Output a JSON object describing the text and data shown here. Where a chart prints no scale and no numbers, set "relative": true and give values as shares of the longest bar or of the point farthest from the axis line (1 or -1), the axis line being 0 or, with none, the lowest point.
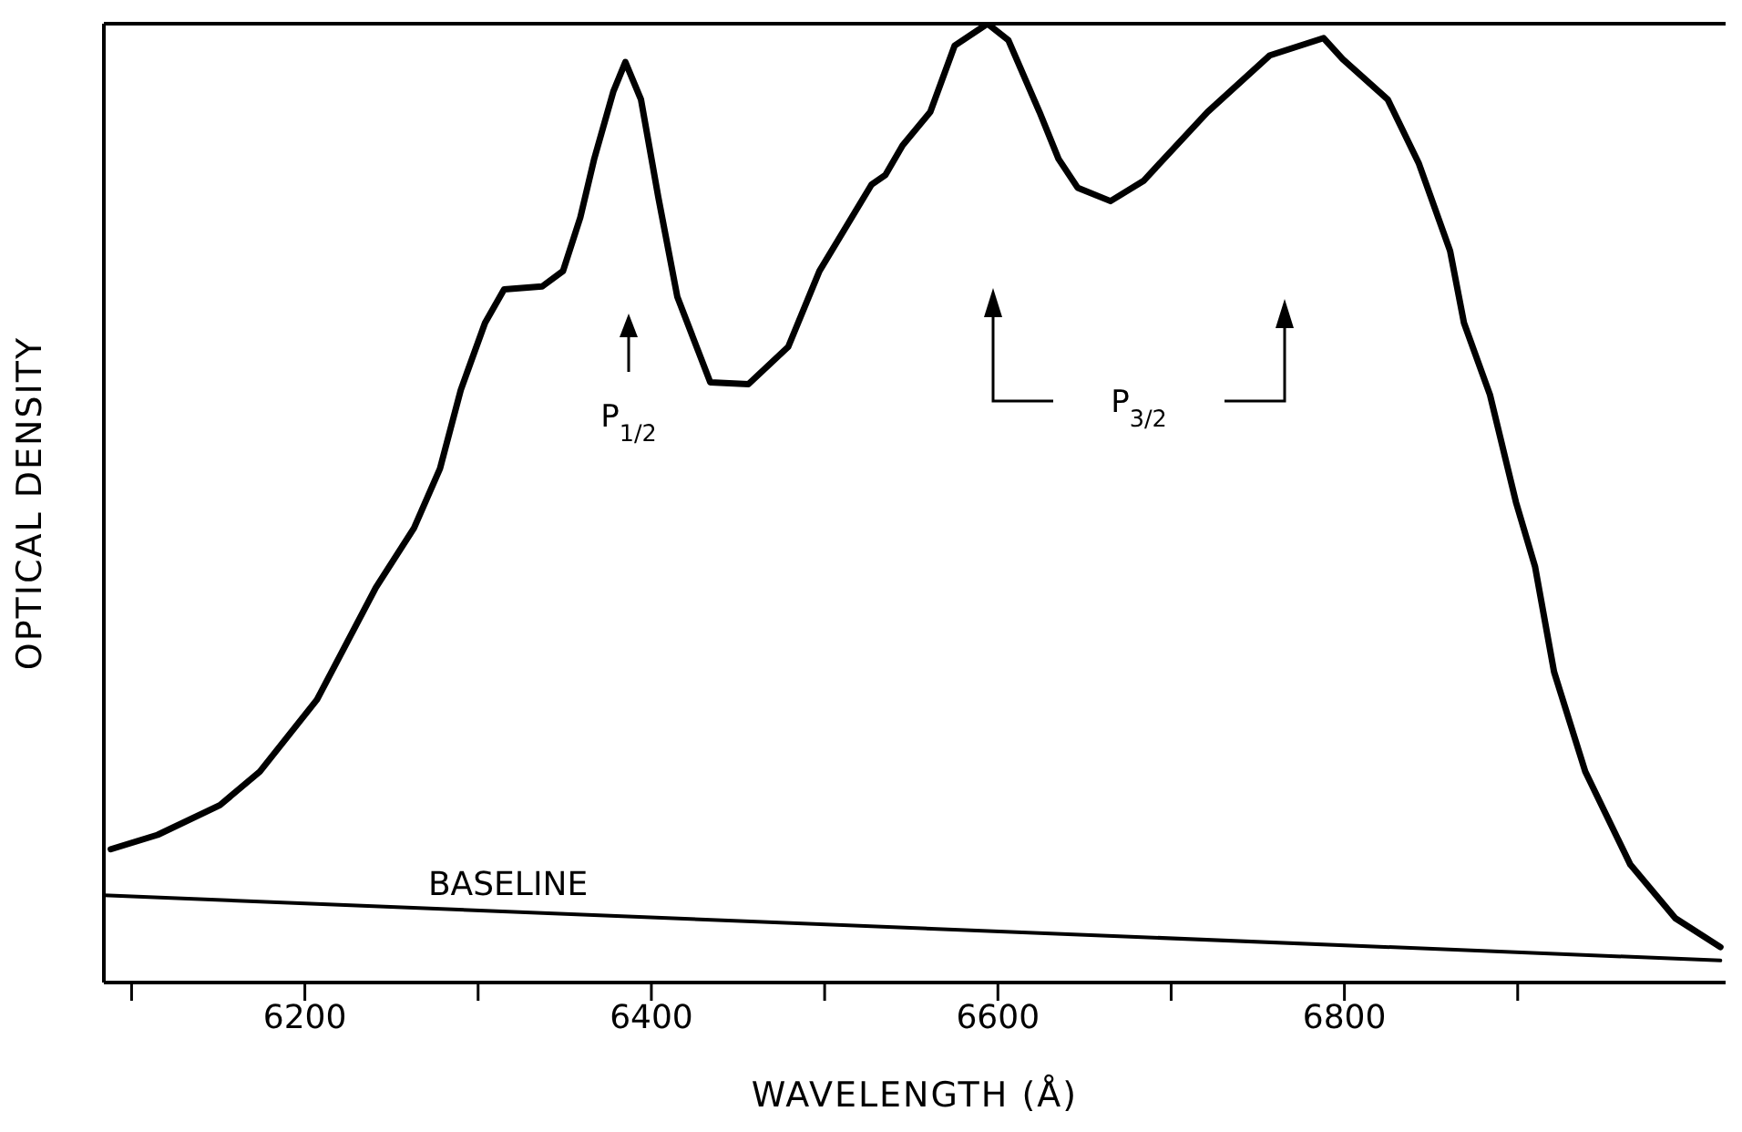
{
  "chart_data": {
    "type": "line",
    "relative": true,
    "xlabel": "WAVELENGTH (Å)",
    "ylabel": "OPTICAL DENSITY",
    "xlim": [
      6084,
      7020
    ],
    "xticks": [
      {
        "value": 6100,
        "label": null
      },
      6200,
      {
        "value": 6300,
        "label": null
      },
      6400,
      {
        "value": 6500,
        "label": null
      },
      6600,
      {
        "value": 6700,
        "label": null
      },
      6800,
      {
        "value": 6900,
        "label": null
      }
    ],
    "legend": false,
    "grid": false,
    "marker": "none",
    "line_style": "solid",
    "series": [
      {
        "color": "#000000",
        "x": [
          6088,
          6115,
          6151,
          6174,
          6207,
          6241,
          6263,
          6278,
          6290,
          6304,
          6315,
          6337,
          6349,
          6359,
          6367,
          6378,
          6385,
          6394,
          6404,
          6415,
          6434,
          6456,
          6479,
          6497,
          6527,
          6535,
          6545,
          6561,
          6575,
          6594,
          6606,
          6624,
          6635,
          6646,
          6665,
          6684,
          6721,
          6757,
          6788,
          6799,
          6825,
          6843,
          6861,
          6869,
          6884,
          6899,
          6910,
          6921,
          6939,
          6965,
          6991,
          7017
        ],
        "values": [
          0.139,
          0.154,
          0.185,
          0.22,
          0.295,
          0.412,
          0.474,
          0.536,
          0.618,
          0.688,
          0.723,
          0.726,
          0.742,
          0.798,
          0.859,
          0.929,
          0.96,
          0.921,
          0.819,
          0.715,
          0.626,
          0.624,
          0.663,
          0.742,
          0.832,
          0.842,
          0.873,
          0.908,
          0.977,
          1.0,
          0.983,
          0.908,
          0.859,
          0.829,
          0.815,
          0.836,
          0.908,
          0.967,
          0.985,
          0.963,
          0.921,
          0.854,
          0.763,
          0.688,
          0.613,
          0.501,
          0.434,
          0.324,
          0.22,
          0.123,
          0.067,
          0.037
        ]
      },
      {
        "name": "BASELINE",
        "color": "#000000",
        "x": [
          6084,
          7017
        ],
        "values": [
          0.091,
          0.023
        ]
      }
    ],
    "annotations": [
      "P$_{1/2}$",
      "P$_{3/2}$"
    ]
  }
}
